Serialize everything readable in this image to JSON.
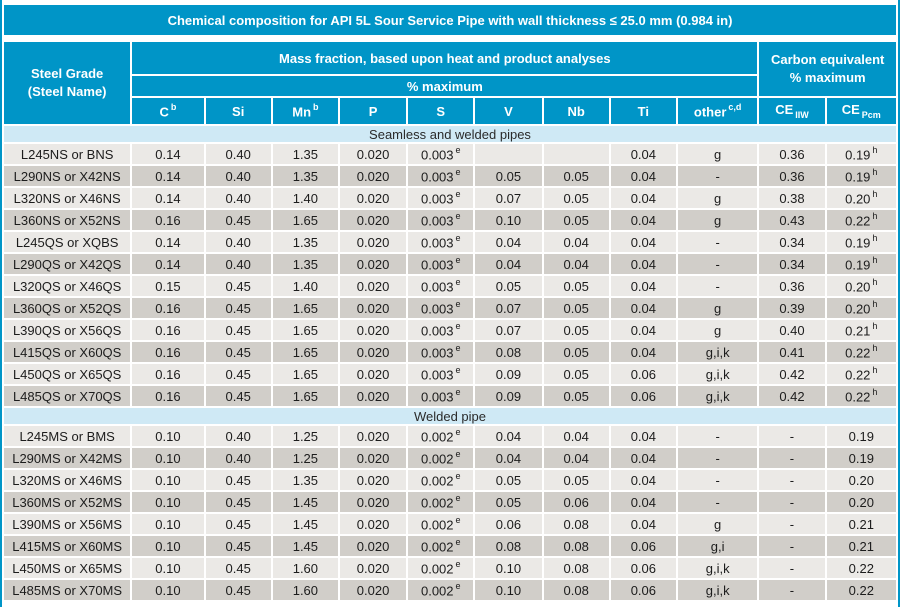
{
  "title": "Chemical composition for API 5L Sour Service Pipe with wall thickness ≤ 25.0 mm (0.984 in)",
  "colors": {
    "accent": "#0095c7",
    "section_band": "#cfe9f5",
    "row_light": "#ebe9e6",
    "row_dark": "#d1cec9",
    "header_text": "#ffffff",
    "body_text": "#1c1c1c"
  },
  "header": {
    "steel_grade": "Steel Grade\n(Steel Name)",
    "mass_fraction": "Mass fraction, based upon heat and product analyses",
    "pct_maximum": "% maximum",
    "carbon_equivalent": "Carbon equivalent\n% maximum",
    "columns": [
      "C^b",
      "Si",
      "Mn^b",
      "P",
      "S",
      "V",
      "Nb",
      "Ti",
      "other^c,d",
      "CE~IIW",
      "CE~Pcm"
    ]
  },
  "sections": [
    {
      "label": "Seamless and welded pipes",
      "rows": [
        {
          "grade": "L245NS or BNS",
          "values": [
            "0.14",
            "0.40",
            "1.35",
            "0.020",
            "0.003^e",
            "",
            "",
            "0.04",
            "g",
            "0.36",
            "0.19^h"
          ]
        },
        {
          "grade": "L290NS or X42NS",
          "values": [
            "0.14",
            "0.40",
            "1.35",
            "0.020",
            "0.003^e",
            "0.05",
            "0.05",
            "0.04",
            "-",
            "0.36",
            "0.19^h"
          ]
        },
        {
          "grade": "L320NS or X46NS",
          "values": [
            "0.14",
            "0.40",
            "1.40",
            "0.020",
            "0.003^e",
            "0.07",
            "0.05",
            "0.04",
            "g",
            "0.38",
            "0.20^h"
          ]
        },
        {
          "grade": "L360NS or X52NS",
          "values": [
            "0.16",
            "0.45",
            "1.65",
            "0.020",
            "0.003^e",
            "0.10",
            "0.05",
            "0.04",
            "g",
            "0.43",
            "0.22^h"
          ]
        },
        {
          "grade": "L245QS or XQBS",
          "values": [
            "0.14",
            "0.40",
            "1.35",
            "0.020",
            "0.003^e",
            "0.04",
            "0.04",
            "0.04",
            "-",
            "0.34",
            "0.19^h"
          ]
        },
        {
          "grade": "L290QS or X42QS",
          "values": [
            "0.14",
            "0.40",
            "1.35",
            "0.020",
            "0.003^e",
            "0.04",
            "0.04",
            "0.04",
            "-",
            "0.34",
            "0.19^h"
          ]
        },
        {
          "grade": "L320QS or X46QS",
          "values": [
            "0.15",
            "0.45",
            "1.40",
            "0.020",
            "0.003^e",
            "0.05",
            "0.05",
            "0.04",
            "-",
            "0.36",
            "0.20^h"
          ]
        },
        {
          "grade": "L360QS or X52QS",
          "values": [
            "0.16",
            "0.45",
            "1.65",
            "0.020",
            "0.003^e",
            "0.07",
            "0.05",
            "0.04",
            "g",
            "0.39",
            "0.20^h"
          ]
        },
        {
          "grade": "L390QS or X56QS",
          "values": [
            "0.16",
            "0.45",
            "1.65",
            "0.020",
            "0.003^e",
            "0.07",
            "0.05",
            "0.04",
            "g",
            "0.40",
            "0.21^h"
          ]
        },
        {
          "grade": "L415QS or X60QS",
          "values": [
            "0.16",
            "0.45",
            "1.65",
            "0.020",
            "0.003^e",
            "0.08",
            "0.05",
            "0.04",
            "g,i,k",
            "0.41",
            "0.22^h"
          ]
        },
        {
          "grade": "L450QS or X65QS",
          "values": [
            "0.16",
            "0.45",
            "1.65",
            "0.020",
            "0.003^e",
            "0.09",
            "0.05",
            "0.06",
            "g,i,k",
            "0.42",
            "0.22^h"
          ]
        },
        {
          "grade": "L485QS or X70QS",
          "values": [
            "0.16",
            "0.45",
            "1.65",
            "0.020",
            "0.003^e",
            "0.09",
            "0.05",
            "0.06",
            "g,i,k",
            "0.42",
            "0.22^h"
          ]
        }
      ]
    },
    {
      "label": "Welded pipe",
      "rows": [
        {
          "grade": "L245MS or BMS",
          "values": [
            "0.10",
            "0.40",
            "1.25",
            "0.020",
            "0.002^e",
            "0.04",
            "0.04",
            "0.04",
            "-",
            "-",
            "0.19"
          ]
        },
        {
          "grade": "L290MS or X42MS",
          "values": [
            "0.10",
            "0.40",
            "1.25",
            "0.020",
            "0.002^e",
            "0.04",
            "0.04",
            "0.04",
            "-",
            "-",
            "0.19"
          ]
        },
        {
          "grade": "L320MS or X46MS",
          "values": [
            "0.10",
            "0.45",
            "1.35",
            "0.020",
            "0.002^e",
            "0.05",
            "0.05",
            "0.04",
            "-",
            "-",
            "0.20"
          ]
        },
        {
          "grade": "L360MS or X52MS",
          "values": [
            "0.10",
            "0.45",
            "1.45",
            "0.020",
            "0.002^e",
            "0.05",
            "0.06",
            "0.04",
            "-",
            "-",
            "0.20"
          ]
        },
        {
          "grade": "L390MS or X56MS",
          "values": [
            "0.10",
            "0.45",
            "1.45",
            "0.020",
            "0.002^e",
            "0.06",
            "0.08",
            "0.04",
            "g",
            "-",
            "0.21"
          ]
        },
        {
          "grade": "L415MS or X60MS",
          "values": [
            "0.10",
            "0.45",
            "1.45",
            "0.020",
            "0.002^e",
            "0.08",
            "0.08",
            "0.06",
            "g,i",
            "-",
            "0.21"
          ]
        },
        {
          "grade": "L450MS or X65MS",
          "values": [
            "0.10",
            "0.45",
            "1.60",
            "0.020",
            "0.002^e",
            "0.10",
            "0.08",
            "0.06",
            "g,i,k",
            "-",
            "0.22"
          ]
        },
        {
          "grade": "L485MS or X70MS",
          "values": [
            "0.10",
            "0.45",
            "1.60",
            "0.020",
            "0.002^e",
            "0.10",
            "0.08",
            "0.06",
            "g,i,k",
            "-",
            "0.22"
          ]
        }
      ]
    }
  ]
}
